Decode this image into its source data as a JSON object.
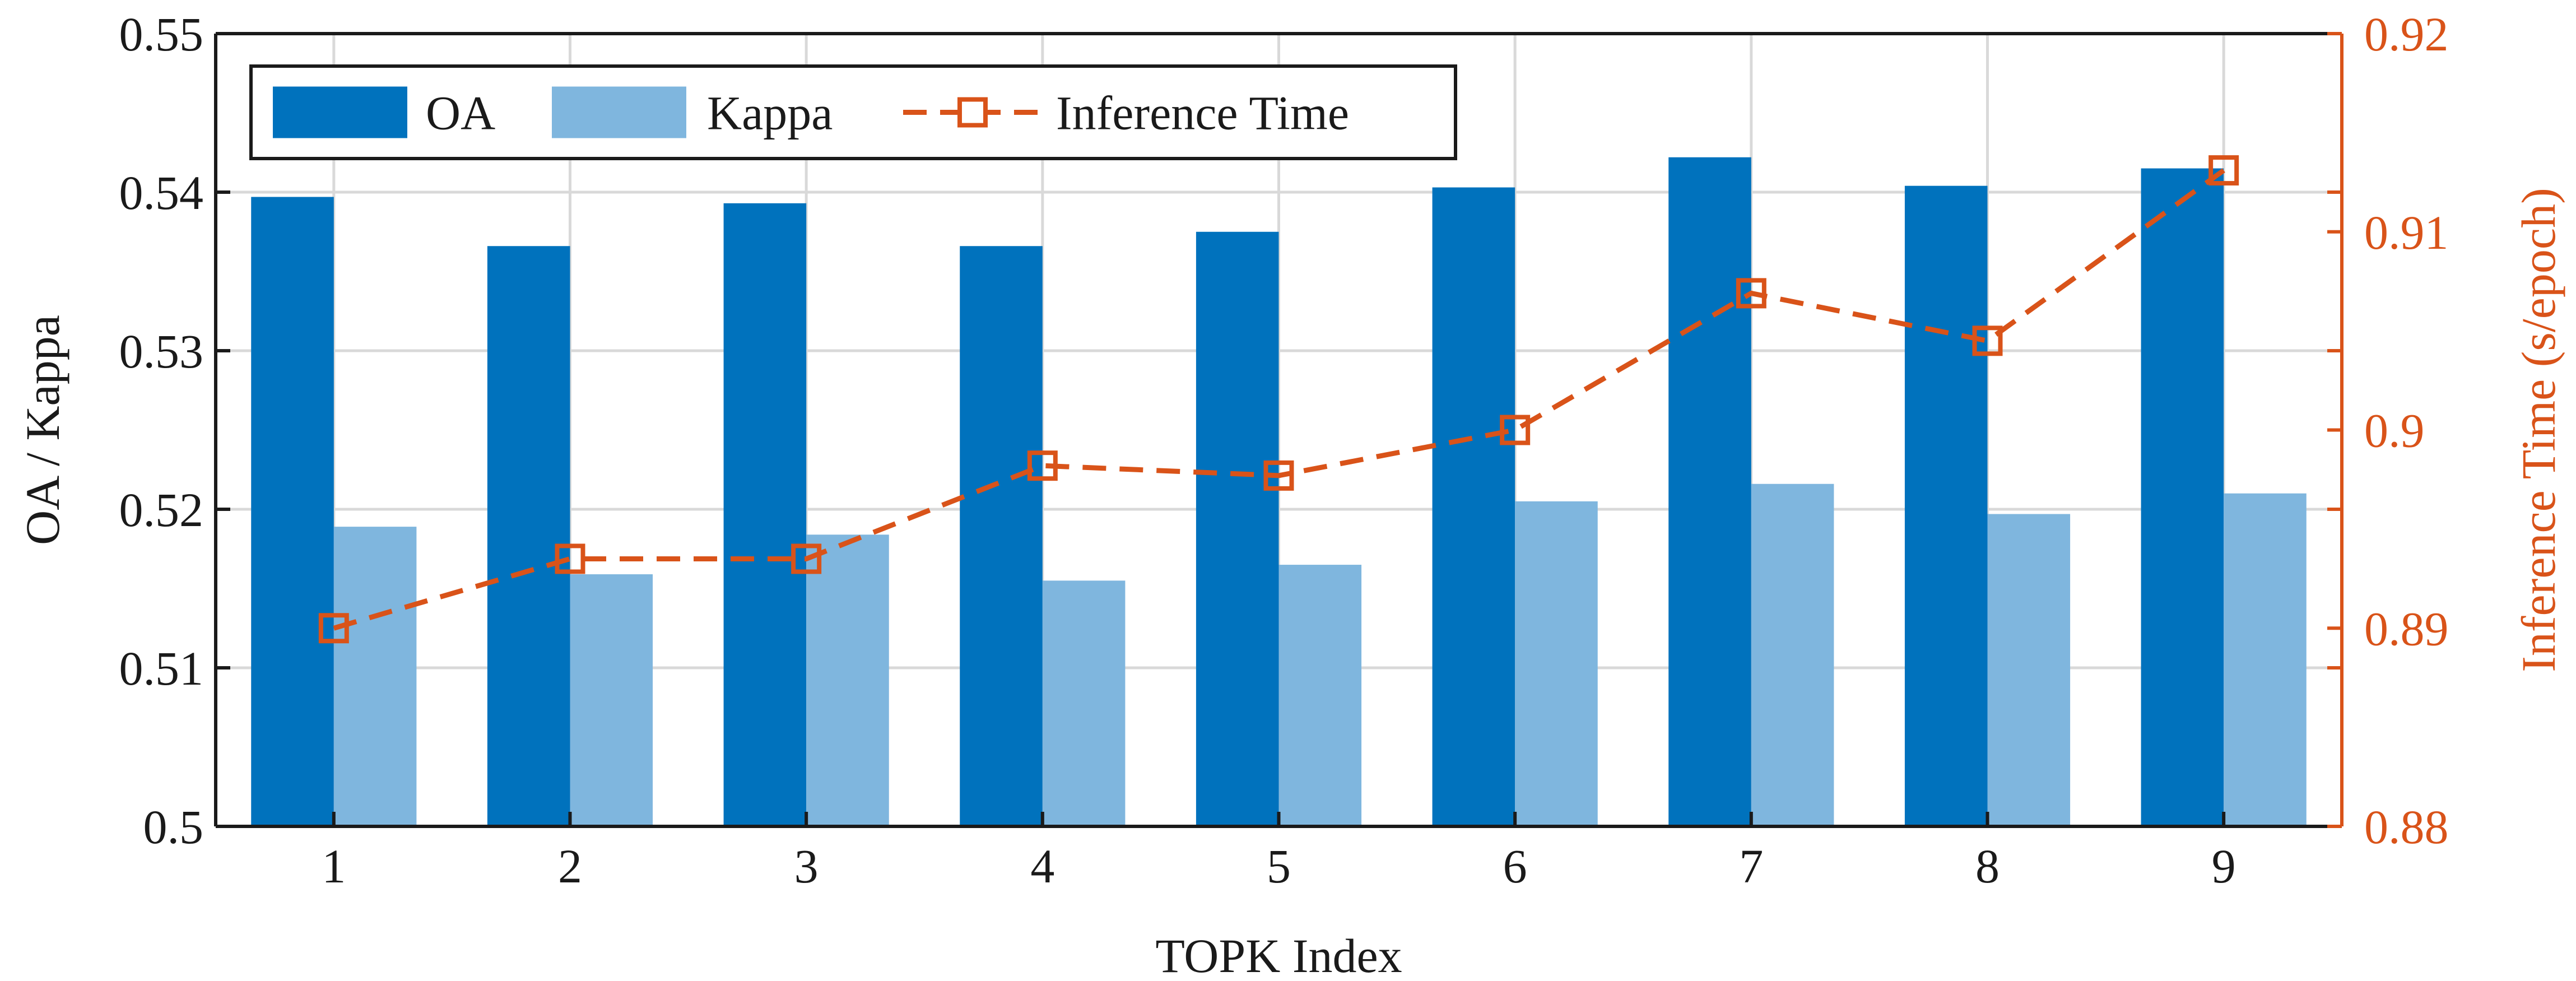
{
  "chart_data": {
    "type": "bar",
    "title": "",
    "categories": [
      "1",
      "2",
      "3",
      "4",
      "5",
      "6",
      "7",
      "8",
      "9"
    ],
    "xlabel": "TOPK Index",
    "ylabel": "OA / Kappa",
    "y2label": "Inference Time (s/epoch)",
    "ylim": [
      0.5,
      0.55
    ],
    "y2lim": [
      0.88,
      0.92
    ],
    "yticks": [
      "0.5",
      "0.51",
      "0.52",
      "0.53",
      "0.54",
      "0.55"
    ],
    "y2ticks": [
      "0.88",
      "0.89",
      "0.9",
      "0.91",
      "0.92"
    ],
    "grid": true,
    "legend_position": "top-left",
    "series": [
      {
        "name": "OA",
        "kind": "bar",
        "axis": "left",
        "color": "#0072BD",
        "values": [
          0.5397,
          0.5366,
          0.5393,
          0.5366,
          0.5375,
          0.5403,
          0.5422,
          0.5404,
          0.5415
        ]
      },
      {
        "name": "Kappa",
        "kind": "bar",
        "axis": "left",
        "color": "#7FB6DE",
        "values": [
          0.5189,
          0.5159,
          0.5184,
          0.5155,
          0.5165,
          0.5205,
          0.5216,
          0.5197,
          0.521
        ]
      },
      {
        "name": "Inference Time",
        "kind": "line",
        "axis": "right",
        "color": "#D95319",
        "line_style": "dashed",
        "marker": "square",
        "values": [
          0.89,
          0.8935,
          0.8935,
          0.8982,
          0.8977,
          0.9,
          0.9069,
          0.9045,
          0.9131
        ]
      }
    ]
  }
}
